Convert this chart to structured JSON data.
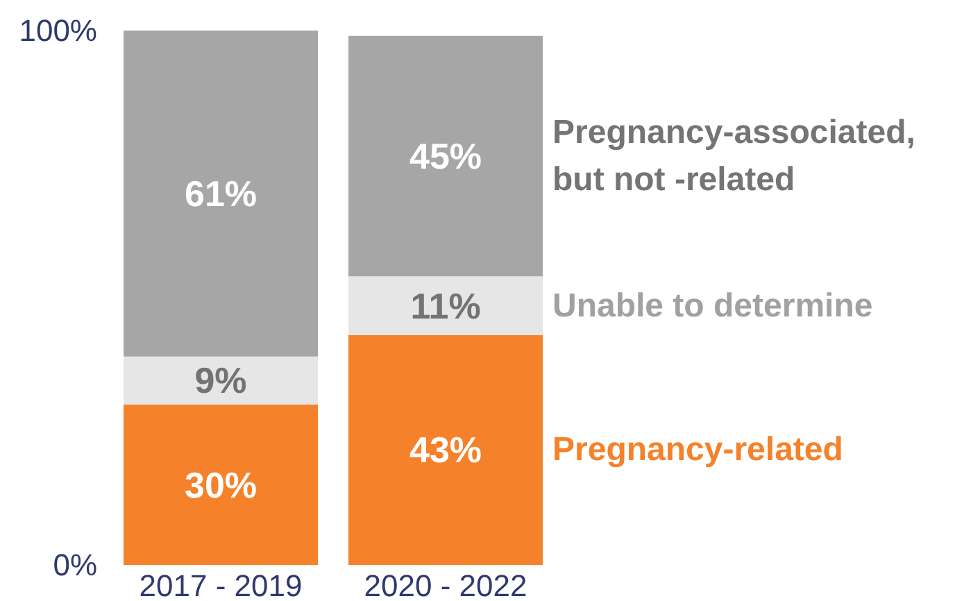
{
  "chart_data": {
    "type": "bar",
    "stacked": true,
    "categories": [
      "2017 - 2019",
      "2020 - 2022"
    ],
    "series": [
      {
        "name": "Pregnancy-related",
        "color": "#f5822a",
        "values": [
          30,
          43
        ],
        "value_labels": [
          "30%",
          "43%"
        ]
      },
      {
        "name": "Unable to determine",
        "color": "#e6e6e6",
        "values": [
          9,
          11
        ],
        "value_labels": [
          "9%",
          "11%"
        ]
      },
      {
        "name": "Pregnancy-associated, but not -related",
        "color": "#a6a6a6",
        "values": [
          61,
          45
        ],
        "value_labels": [
          "61%",
          "45%"
        ]
      }
    ],
    "ylim": [
      0,
      100
    ],
    "yticks": [
      {
        "value": 0,
        "label": "0%"
      },
      {
        "value": 100,
        "label": "100%"
      }
    ],
    "grid": false,
    "legend": false
  }
}
